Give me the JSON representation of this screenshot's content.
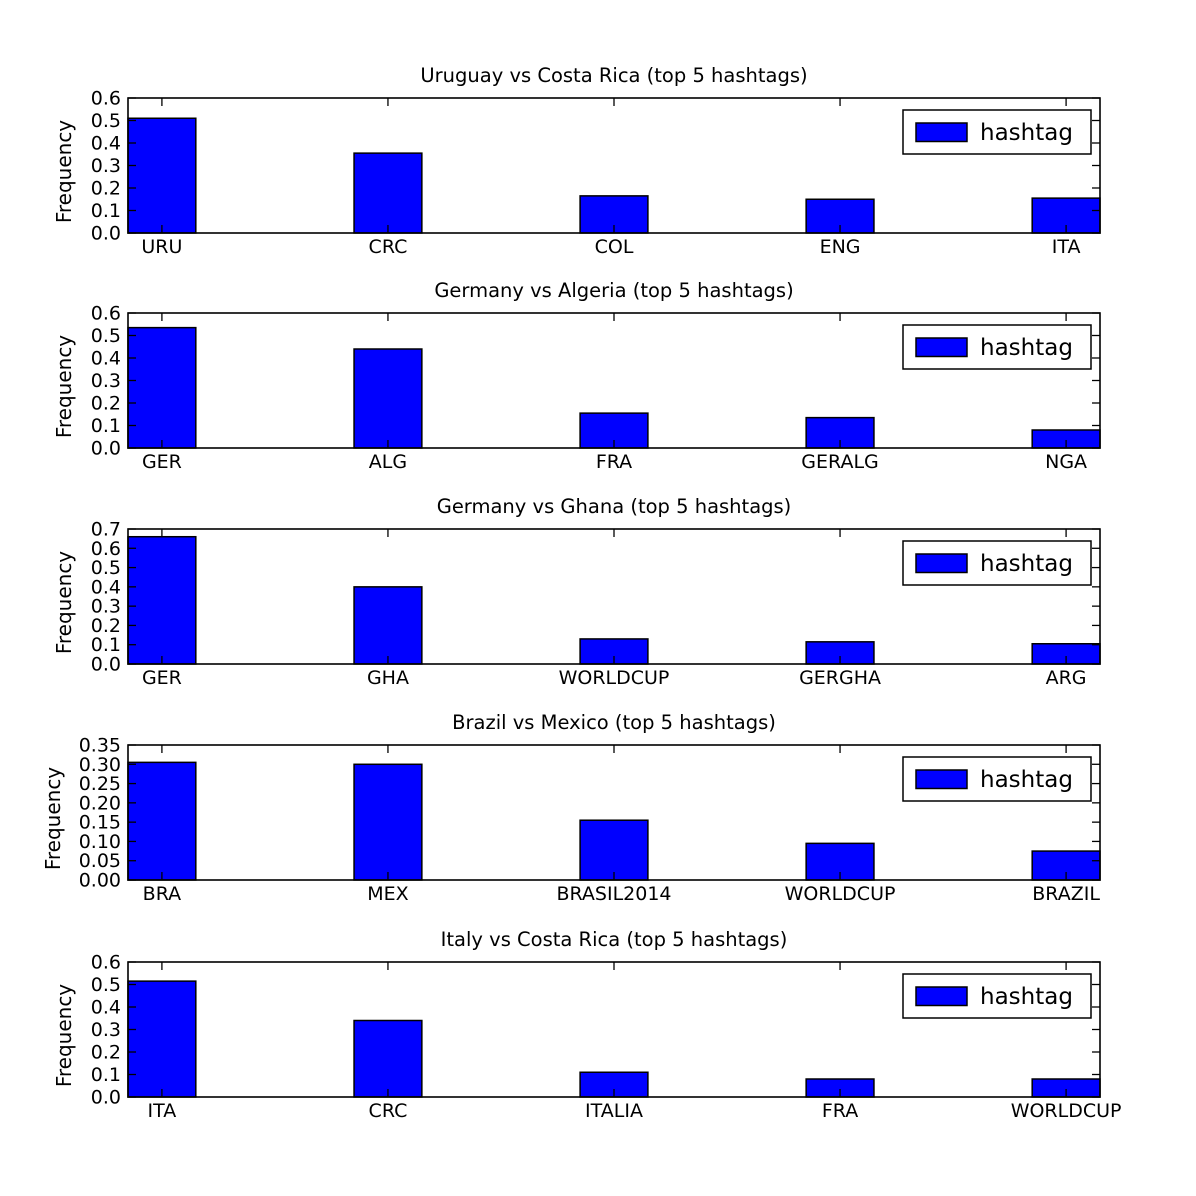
{
  "figure": {
    "background": "#ffffff",
    "type": "matplotlib-figure",
    "n_subplots": 5
  },
  "style": {
    "bar_color": "#0000ff",
    "bar_edge_color": "#000000",
    "axis_color": "#000000",
    "text_color": "#000000",
    "legend_bg": "#ffffff"
  },
  "chart_data": [
    {
      "type": "bar",
      "title": "Uruguay vs Costa Rica (top 5 hashtags)",
      "categories": [
        "URU",
        "CRC",
        "COL",
        "ENG",
        "ITA"
      ],
      "values": [
        0.51,
        0.355,
        0.165,
        0.15,
        0.155
      ],
      "xlabel": "",
      "ylabel": "Frequency",
      "ylim": [
        0,
        0.6
      ],
      "ytick_step": 0.1,
      "ytick_labels": [
        "0.0",
        "0.1",
        "0.2",
        "0.3",
        "0.4",
        "0.5",
        "0.6"
      ],
      "legend_label": "hashtag",
      "legend_position": "upper right",
      "grid": false
    },
    {
      "type": "bar",
      "title": "Germany vs Algeria (top 5 hashtags)",
      "categories": [
        "GER",
        "ALG",
        "FRA",
        "GERALG",
        "NGA"
      ],
      "values": [
        0.535,
        0.44,
        0.155,
        0.135,
        0.08
      ],
      "xlabel": "",
      "ylabel": "Frequency",
      "ylim": [
        0,
        0.6
      ],
      "ytick_step": 0.1,
      "ytick_labels": [
        "0.0",
        "0.1",
        "0.2",
        "0.3",
        "0.4",
        "0.5",
        "0.6"
      ],
      "legend_label": "hashtag",
      "legend_position": "upper right",
      "grid": false
    },
    {
      "type": "bar",
      "title": "Germany vs Ghana (top 5 hashtags)",
      "categories": [
        "GER",
        "GHA",
        "WORLDCUP",
        "GERGHA",
        "ARG"
      ],
      "values": [
        0.66,
        0.4,
        0.13,
        0.115,
        0.105
      ],
      "xlabel": "",
      "ylabel": "Frequency",
      "ylim": [
        0,
        0.7
      ],
      "ytick_step": 0.1,
      "ytick_labels": [
        "0.0",
        "0.1",
        "0.2",
        "0.3",
        "0.4",
        "0.5",
        "0.6",
        "0.7"
      ],
      "legend_label": "hashtag",
      "legend_position": "upper right",
      "grid": false
    },
    {
      "type": "bar",
      "title": "Brazil vs Mexico (top 5 hashtags)",
      "categories": [
        "BRA",
        "MEX",
        "BRASIL2014",
        "WORLDCUP",
        "BRAZIL"
      ],
      "values": [
        0.305,
        0.3,
        0.155,
        0.095,
        0.075
      ],
      "xlabel": "",
      "ylabel": "Frequency",
      "ylim": [
        0,
        0.35
      ],
      "ytick_step": 0.05,
      "ytick_labels": [
        "0.00",
        "0.05",
        "0.10",
        "0.15",
        "0.20",
        "0.25",
        "0.30",
        "0.35"
      ],
      "legend_label": "hashtag",
      "legend_position": "upper right",
      "grid": false
    },
    {
      "type": "bar",
      "title": "Italy vs Costa Rica (top 5 hashtags)",
      "categories": [
        "ITA",
        "CRC",
        "ITALIA",
        "FRA",
        "WORLDCUP"
      ],
      "values": [
        0.515,
        0.34,
        0.11,
        0.08,
        0.08
      ],
      "xlabel": "",
      "ylabel": "Frequency",
      "ylim": [
        0,
        0.6
      ],
      "ytick_step": 0.1,
      "ytick_labels": [
        "0.0",
        "0.1",
        "0.2",
        "0.3",
        "0.4",
        "0.5",
        "0.6"
      ],
      "legend_label": "hashtag",
      "legend_position": "upper right",
      "grid": false
    }
  ]
}
